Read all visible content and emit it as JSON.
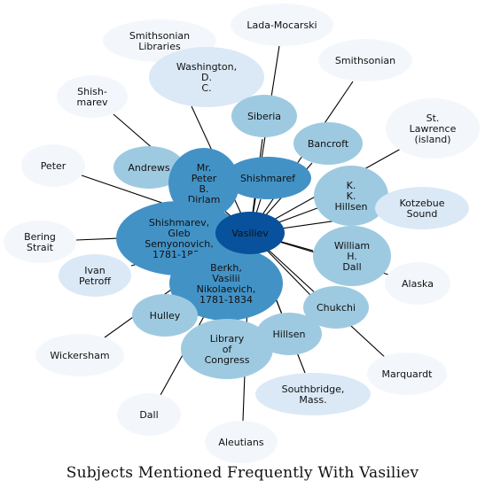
{
  "title": "Subjects Mentioned Frequently With Vasiliev",
  "center": {
    "id": "vasiliev",
    "label": "Vasiliev",
    "color": "#08519c"
  },
  "nodes": [
    {
      "id": "smithsonian-libraries",
      "label": "Smithsonian Libraries",
      "lines": [
        "Smithsonian",
        "Libraries"
      ],
      "color": "#f3f7fc"
    },
    {
      "id": "lada-mocarski",
      "label": "Lada-Mocarski",
      "lines": [
        "Lada-Mocarski"
      ],
      "color": "#f3f7fc"
    },
    {
      "id": "washington-dc",
      "label": "Washington, D. C.",
      "lines": [
        "Washington,",
        "D.",
        "C."
      ],
      "color": "#dbe9f6"
    },
    {
      "id": "smithsonian",
      "label": "Smithsonian",
      "lines": [
        "Smithsonian"
      ],
      "color": "#f3f7fc"
    },
    {
      "id": "shishmarev-short",
      "label": "Shish- marev",
      "lines": [
        "Shish-",
        "marev"
      ],
      "color": "#f3f7fc"
    },
    {
      "id": "siberia",
      "label": "Siberia",
      "lines": [
        "Siberia"
      ],
      "color": "#9ecae1"
    },
    {
      "id": "st-lawrence",
      "label": "St. Lawrence (island)",
      "lines": [
        "St.",
        "Lawrence",
        "(island)"
      ],
      "color": "#f3f7fc"
    },
    {
      "id": "bancroft",
      "label": "Bancroft",
      "lines": [
        "Bancroft"
      ],
      "color": "#9ecae1"
    },
    {
      "id": "peter",
      "label": "Peter",
      "lines": [
        "Peter"
      ],
      "color": "#f3f7fc"
    },
    {
      "id": "andrews",
      "label": "Andrews",
      "lines": [
        "Andrews"
      ],
      "color": "#9ecae1"
    },
    {
      "id": "mr-peter-dirlam",
      "label": "Mr. Peter B. Dirlam",
      "lines": [
        "Mr.",
        "Peter",
        "B.",
        "Dirlam"
      ],
      "color": "#4292c6"
    },
    {
      "id": "shishmaref",
      "label": "Shishmaref",
      "lines": [
        "Shishmaref"
      ],
      "color": "#4292c6"
    },
    {
      "id": "kk-hillsen",
      "label": "K. K. Hillsen",
      "lines": [
        "K.",
        "K.",
        "Hillsen"
      ],
      "color": "#9ecae1"
    },
    {
      "id": "kotzebue-sound",
      "label": "Kotzebue Sound",
      "lines": [
        "Kotzebue",
        "Sound"
      ],
      "color": "#dbe9f6"
    },
    {
      "id": "bering-strait",
      "label": "Bering Strait",
      "lines": [
        "Bering",
        "Strait"
      ],
      "color": "#f3f7fc"
    },
    {
      "id": "gleb-shishmarev",
      "label": "Shishmarev, Gleb Semyonovich, 1781-1835",
      "lines": [
        "Shishmarev,",
        "Gleb",
        "Semyonovich,",
        "1781-1835"
      ],
      "color": "#4292c6"
    },
    {
      "id": "william-dall",
      "label": "William H. Dall",
      "lines": [
        "William",
        "H.",
        "Dall"
      ],
      "color": "#9ecae1"
    },
    {
      "id": "ivan-petroff",
      "label": "Ivan Petroff",
      "lines": [
        "Ivan",
        "Petroff"
      ],
      "color": "#dbe9f6"
    },
    {
      "id": "vasilii-berkh",
      "label": "Berkh, Vasilii Nikolaevich, 1781-1834",
      "lines": [
        "Berkh,",
        "Vasilii",
        "Nikolaevich,",
        "1781-1834"
      ],
      "color": "#4292c6"
    },
    {
      "id": "alaska",
      "label": "Alaska",
      "lines": [
        "Alaska"
      ],
      "color": "#f3f7fc"
    },
    {
      "id": "chukchi",
      "label": "Chukchi",
      "lines": [
        "Chukchi"
      ],
      "color": "#9ecae1"
    },
    {
      "id": "hulley",
      "label": "Hulley",
      "lines": [
        "Hulley"
      ],
      "color": "#9ecae1"
    },
    {
      "id": "hillsen",
      "label": "Hillsen",
      "lines": [
        "Hillsen"
      ],
      "color": "#9ecae1"
    },
    {
      "id": "library-of-congress",
      "label": "Library of Congress",
      "lines": [
        "Library",
        "of",
        "Congress"
      ],
      "color": "#9ecae1"
    },
    {
      "id": "wickersham",
      "label": "Wickersham",
      "lines": [
        "Wickersham"
      ],
      "color": "#f3f7fc"
    },
    {
      "id": "marquardt",
      "label": "Marquardt",
      "lines": [
        "Marquardt"
      ],
      "color": "#f3f7fc"
    },
    {
      "id": "southbridge-mass",
      "label": "Southbridge, Mass.",
      "lines": [
        "Southbridge,",
        "Mass."
      ],
      "color": "#dbe9f6"
    },
    {
      "id": "dall",
      "label": "Dall",
      "lines": [
        "Dall"
      ],
      "color": "#f3f7fc"
    },
    {
      "id": "aleutians",
      "label": "Aleutians",
      "lines": [
        "Aleutians"
      ],
      "color": "#f3f7fc"
    }
  ]
}
